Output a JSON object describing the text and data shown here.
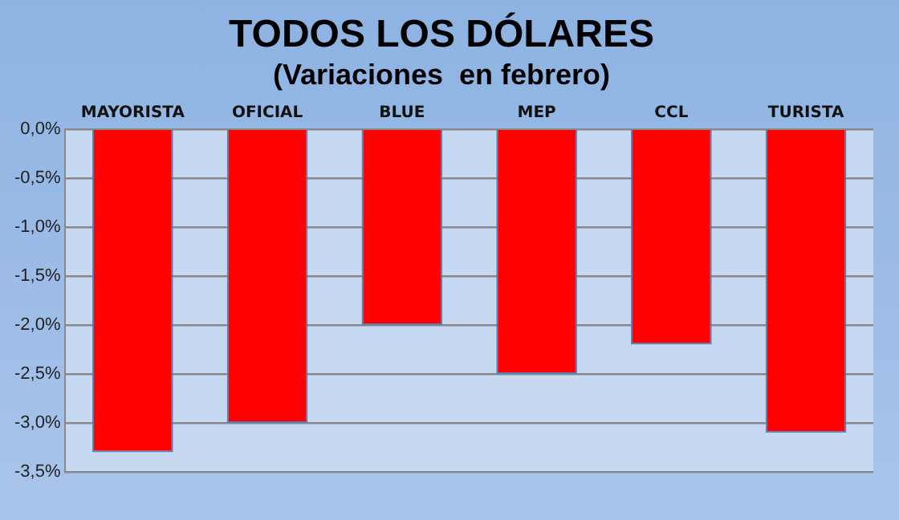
{
  "chart_data": {
    "type": "bar",
    "title": "TODOS LOS DÓLARES",
    "subtitle": "(Variaciones  en febrero)",
    "categories": [
      "MAYORISTA",
      "OFICIAL",
      "BLUE",
      "MEP",
      "CCL",
      "TURISTA"
    ],
    "values": [
      -3.3,
      -3.0,
      -2.0,
      -2.5,
      -2.2,
      -3.1
    ],
    "color": "#ff0000",
    "ylim": [
      -3.5,
      0
    ],
    "yticks": [
      {
        "value": 0,
        "label": "0,0%"
      },
      {
        "value": -0.5,
        "label": "-0,5%"
      },
      {
        "value": -1,
        "label": "-1,0%"
      },
      {
        "value": -1.5,
        "label": "-1,5%"
      },
      {
        "value": -2,
        "label": "-2,0%"
      },
      {
        "value": -2.5,
        "label": "-2,5%"
      },
      {
        "value": -3,
        "label": "-3,0%"
      },
      {
        "value": -3.5,
        "label": "-3,5%"
      }
    ],
    "grid": "y",
    "legend": false
  }
}
